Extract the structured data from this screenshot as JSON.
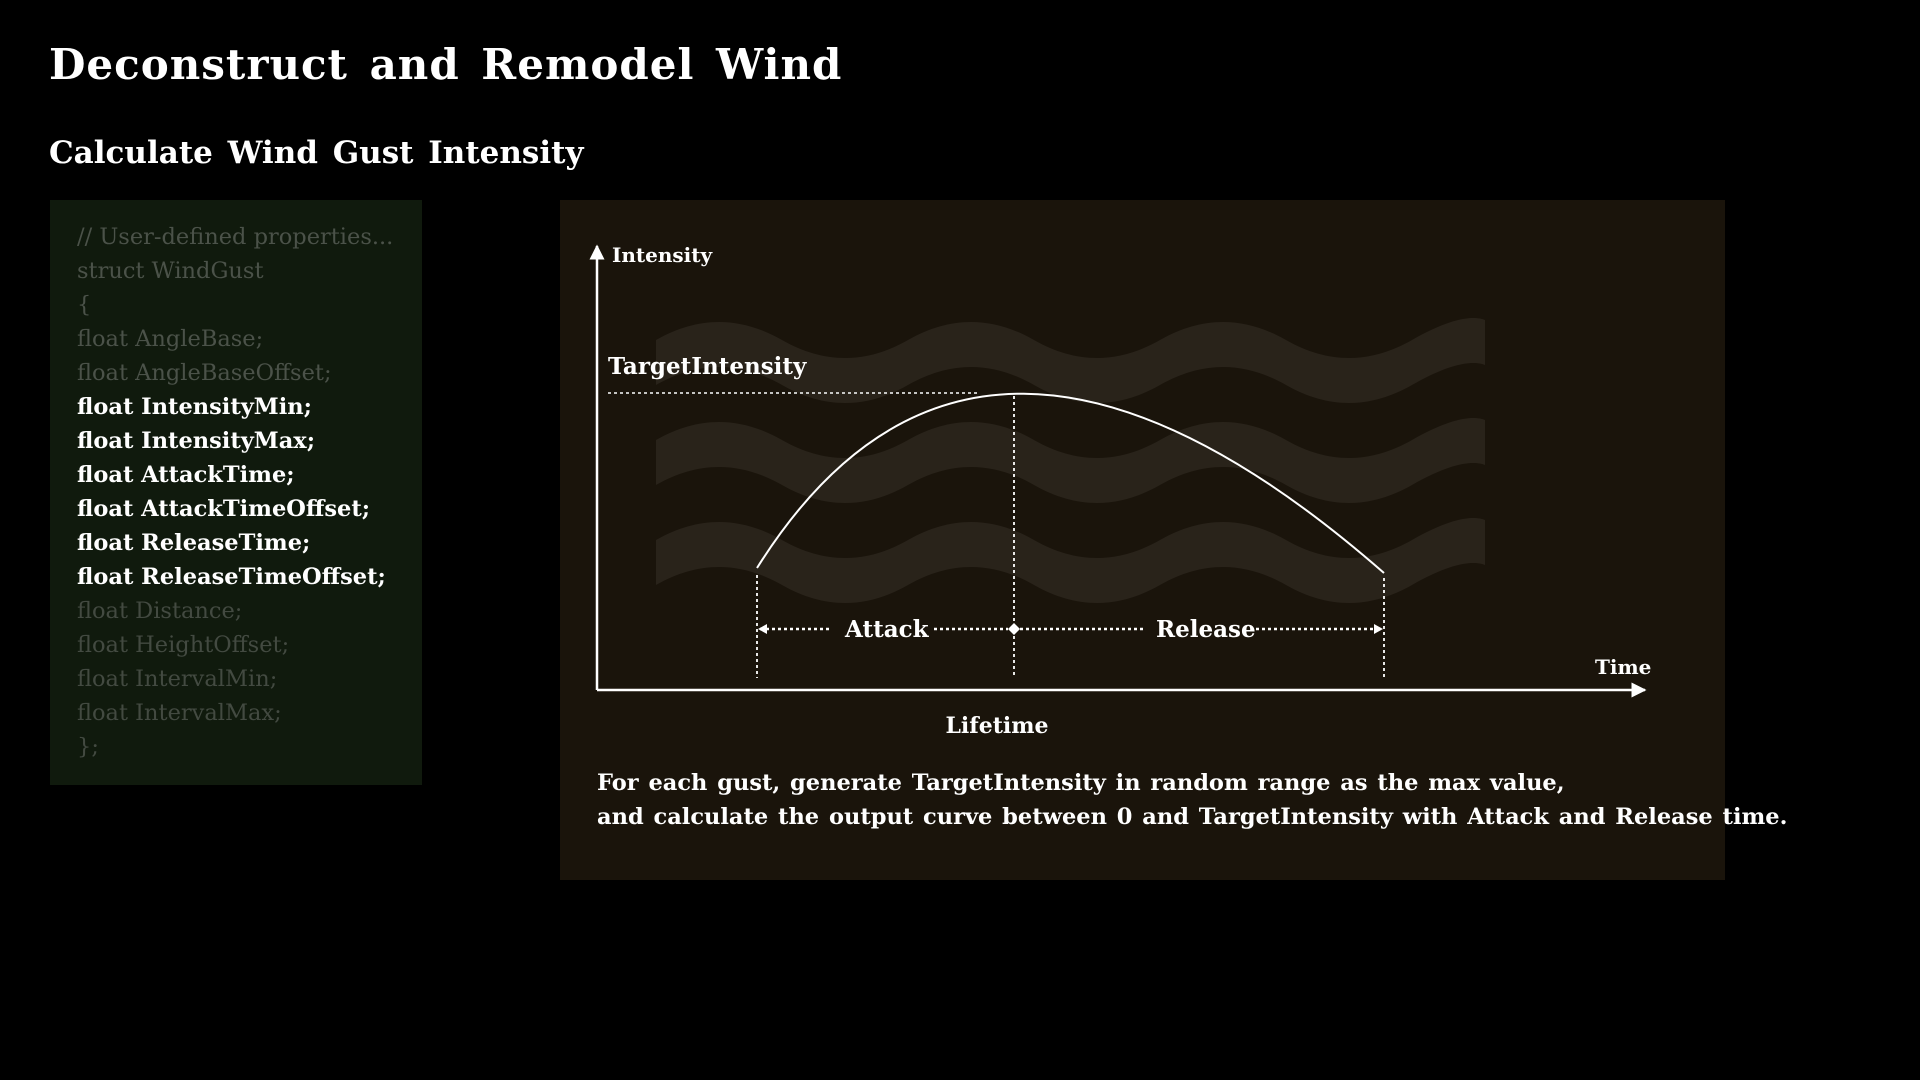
{
  "header": {
    "title": "Deconstruct and Remodel Wind",
    "subtitle": "Calculate Wind Gust Intensity"
  },
  "code": {
    "lines": [
      {
        "text": "// User-defined properties...",
        "highlight": false
      },
      {
        "text": "struct WindGust",
        "highlight": false
      },
      {
        "text": "{",
        "highlight": false
      },
      {
        "text": "float AngleBase;",
        "highlight": false
      },
      {
        "text": "float AngleBaseOffset;",
        "highlight": false
      },
      {
        "text": "float IntensityMin;",
        "highlight": true
      },
      {
        "text": "float IntensityMax;",
        "highlight": true
      },
      {
        "text": "float AttackTime;",
        "highlight": true
      },
      {
        "text": "float AttackTimeOffset;",
        "highlight": true
      },
      {
        "text": "float ReleaseTime;",
        "highlight": true
      },
      {
        "text": "float ReleaseTimeOffset;",
        "highlight": true
      },
      {
        "text": "float Distance;",
        "highlight": false
      },
      {
        "text": "float HeightOffset;",
        "highlight": false
      },
      {
        "text": "float IntervalMin;",
        "highlight": false
      },
      {
        "text": "float IntervalMax;",
        "highlight": false
      },
      {
        "text": "};",
        "highlight": false
      }
    ]
  },
  "diagram": {
    "y_axis_label": "Intensity",
    "x_axis_label": "Time",
    "peak_label": "TargetIntensity",
    "attack_label": "Attack",
    "release_label": "Release",
    "lifetime_label": "Lifetime",
    "description": [
      "For each gust, generate TargetIntensity in random range as the max value,",
      "and calculate the output curve between 0 and TargetIntensity with Attack and Release time."
    ]
  },
  "colors": {
    "background": "#000000",
    "code_panel": "#101a0d",
    "diagram_panel": "#1a140b",
    "wave": "#2a241b",
    "text": "#ffffff",
    "code_dim": "#4b5249"
  }
}
